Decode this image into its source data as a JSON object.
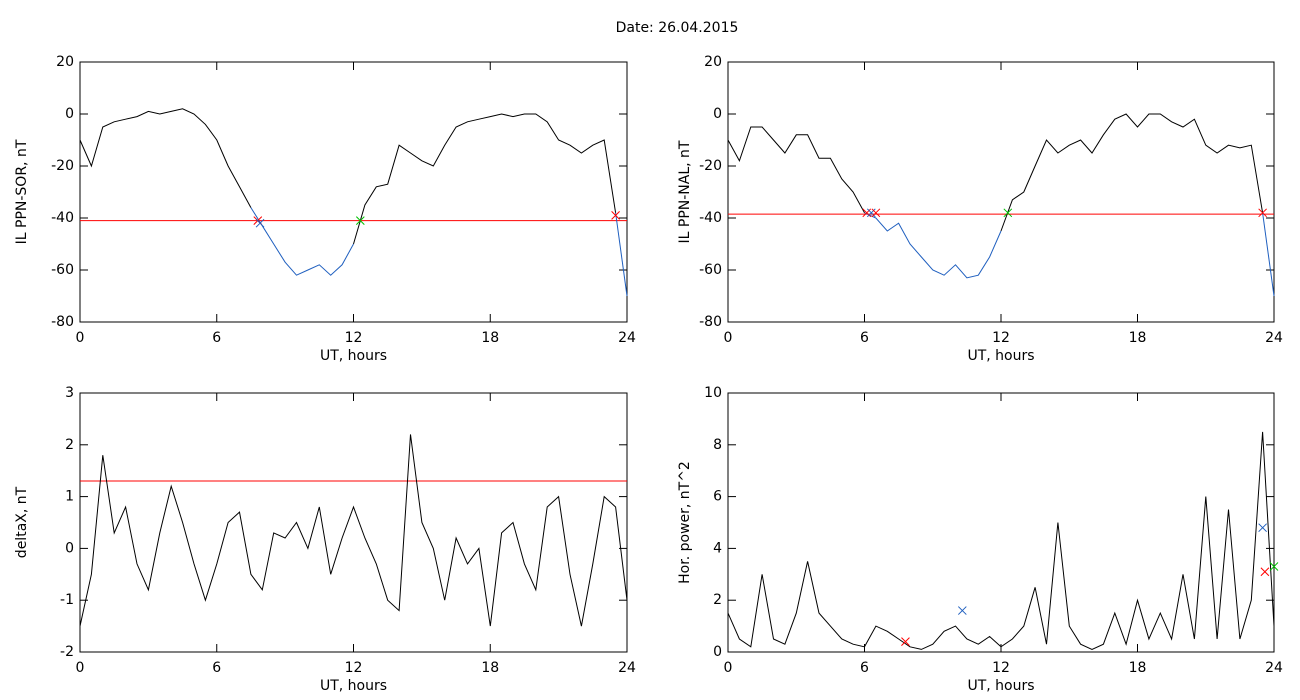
{
  "title": "Date:  26.04.2015",
  "chart_data": [
    {
      "type": "line",
      "ylabel": "IL PPN-SOR, nT",
      "xlabel": "UT, hours",
      "xlim": [
        0,
        24
      ],
      "xticks": [
        0,
        6,
        12,
        18,
        24
      ],
      "ylim": [
        -80,
        20
      ],
      "yticks": [
        -80,
        -60,
        -40,
        -20,
        0,
        20
      ],
      "x": [
        0,
        0.5,
        1,
        1.5,
        2,
        2.5,
        3,
        3.5,
        4,
        4.5,
        5,
        5.5,
        6,
        6.5,
        7,
        7.5,
        8,
        8.5,
        9,
        9.5,
        10,
        10.5,
        11,
        11.5,
        12,
        12.5,
        13,
        13.5,
        14,
        14.5,
        15,
        15.5,
        16,
        16.5,
        17,
        17.5,
        18,
        18.5,
        19,
        19.5,
        20,
        20.5,
        21,
        21.5,
        22,
        22.5,
        23,
        23.5,
        24
      ],
      "series": [
        {
          "color": "#000000",
          "below_color": "#1f5fbf",
          "values": [
            -10,
            -20,
            -5,
            -3,
            -2,
            -1,
            1,
            0,
            1,
            2,
            0,
            -4,
            -10,
            -20,
            -28,
            -36,
            -43,
            -50,
            -57,
            -62,
            -60,
            -58,
            -62,
            -58,
            -50,
            -35,
            -28,
            -27,
            -12,
            -15,
            -18,
            -20,
            -12,
            -5,
            -3,
            -2,
            -1,
            0,
            -1,
            0,
            0,
            -3,
            -10,
            -12,
            -15,
            -12,
            -10,
            -38,
            -70
          ]
        }
      ],
      "threshold": -41,
      "threshold_color": "#ff0000",
      "markers": [
        {
          "x": 7.8,
          "y": -41,
          "color": "#ff0000"
        },
        {
          "x": 7.9,
          "y": -42,
          "color": "#1f5fbf"
        },
        {
          "x": 12.3,
          "y": -41,
          "color": "#00c000"
        },
        {
          "x": 23.5,
          "y": -39,
          "color": "#ff0000"
        }
      ]
    },
    {
      "type": "line",
      "ylabel": "IL PPN-NAL, nT",
      "xlabel": "UT, hours",
      "xlim": [
        0,
        24
      ],
      "xticks": [
        0,
        6,
        12,
        18,
        24
      ],
      "ylim": [
        -80,
        20
      ],
      "yticks": [
        -80,
        -60,
        -40,
        -20,
        0,
        20
      ],
      "x": [
        0,
        0.5,
        1,
        1.5,
        2,
        2.5,
        3,
        3.5,
        4,
        4.5,
        5,
        5.5,
        6,
        6.5,
        7,
        7.5,
        8,
        8.5,
        9,
        9.5,
        10,
        10.5,
        11,
        11.5,
        12,
        12.5,
        13,
        13.5,
        14,
        14.5,
        15,
        15.5,
        16,
        16.5,
        17,
        17.5,
        18,
        18.5,
        19,
        19.5,
        20,
        20.5,
        21,
        21.5,
        22,
        22.5,
        23,
        23.5,
        24
      ],
      "series": [
        {
          "color": "#000000",
          "below_color": "#1f5fbf",
          "values": [
            -10,
            -18,
            -5,
            -5,
            -10,
            -15,
            -8,
            -8,
            -17,
            -17,
            -25,
            -30,
            -38,
            -40,
            -45,
            -42,
            -50,
            -55,
            -60,
            -62,
            -58,
            -63,
            -62,
            -55,
            -45,
            -33,
            -30,
            -20,
            -10,
            -15,
            -12,
            -10,
            -15,
            -8,
            -2,
            0,
            -5,
            0,
            0,
            -3,
            -5,
            -2,
            -12,
            -15,
            -12,
            -13,
            -12,
            -38,
            -70
          ]
        }
      ],
      "threshold": -38.5,
      "threshold_color": "#ff0000",
      "markers": [
        {
          "x": 6.1,
          "y": -38,
          "color": "#ff0000"
        },
        {
          "x": 6.3,
          "y": -38,
          "color": "#1f5fbf"
        },
        {
          "x": 6.5,
          "y": -38,
          "color": "#ff0000"
        },
        {
          "x": 12.3,
          "y": -38,
          "color": "#00c000"
        },
        {
          "x": 23.5,
          "y": -38,
          "color": "#ff0000"
        }
      ]
    },
    {
      "type": "line",
      "ylabel": "deltaX, nT",
      "xlabel": "UT, hours",
      "xlim": [
        0,
        24
      ],
      "xticks": [
        0,
        6,
        12,
        18,
        24
      ],
      "ylim": [
        -2,
        3
      ],
      "yticks": [
        -2,
        -1,
        0,
        1,
        2,
        3
      ],
      "x": [
        0,
        0.5,
        1,
        1.5,
        2,
        2.5,
        3,
        3.5,
        4,
        4.5,
        5,
        5.5,
        6,
        6.5,
        7,
        7.5,
        8,
        8.5,
        9,
        9.5,
        10,
        10.5,
        11,
        11.5,
        12,
        12.5,
        13,
        13.5,
        14,
        14.5,
        15,
        15.5,
        16,
        16.5,
        17,
        17.5,
        18,
        18.5,
        19,
        19.5,
        20,
        20.5,
        21,
        21.5,
        22,
        22.5,
        23,
        23.5,
        24
      ],
      "series": [
        {
          "color": "#000000",
          "values": [
            -1.5,
            -0.5,
            1.8,
            0.3,
            0.8,
            -0.3,
            -0.8,
            0.3,
            1.2,
            0.5,
            -0.3,
            -1.0,
            -0.3,
            0.5,
            0.7,
            -0.5,
            -0.8,
            0.3,
            0.2,
            0.5,
            0.0,
            0.8,
            -0.5,
            0.2,
            0.8,
            0.2,
            -0.3,
            -1.0,
            -1.2,
            2.2,
            0.5,
            0.0,
            -1.0,
            0.2,
            -0.3,
            0.0,
            -1.5,
            0.3,
            0.5,
            -0.3,
            -0.8,
            0.8,
            1.0,
            -0.5,
            -1.5,
            -0.3,
            1.0,
            0.8,
            -1.0
          ]
        }
      ],
      "threshold": 1.3,
      "threshold_color": "#ff0000"
    },
    {
      "type": "line",
      "ylabel": "Hor. power, nT^2",
      "xlabel": "UT, hours",
      "xlim": [
        0,
        24
      ],
      "xticks": [
        0,
        6,
        12,
        18,
        24
      ],
      "ylim": [
        0,
        10
      ],
      "yticks": [
        0,
        2,
        4,
        6,
        8,
        10
      ],
      "x": [
        0,
        0.5,
        1,
        1.5,
        2,
        2.5,
        3,
        3.5,
        4,
        4.5,
        5,
        5.5,
        6,
        6.5,
        7,
        7.5,
        8,
        8.5,
        9,
        9.5,
        10,
        10.5,
        11,
        11.5,
        12,
        12.5,
        13,
        13.5,
        14,
        14.5,
        15,
        15.5,
        16,
        16.5,
        17,
        17.5,
        18,
        18.5,
        19,
        19.5,
        20,
        20.5,
        21,
        21.5,
        22,
        22.5,
        23,
        23.5,
        24
      ],
      "series": [
        {
          "color": "#000000",
          "values": [
            1.5,
            0.5,
            0.2,
            3.0,
            0.5,
            0.3,
            1.5,
            3.5,
            1.5,
            1.0,
            0.5,
            0.3,
            0.2,
            1.0,
            0.8,
            0.5,
            0.2,
            0.1,
            0.3,
            0.8,
            1.0,
            0.5,
            0.3,
            0.6,
            0.2,
            0.5,
            1.0,
            2.5,
            0.3,
            5.0,
            1.0,
            0.3,
            0.1,
            0.3,
            1.5,
            0.3,
            2.0,
            0.5,
            1.5,
            0.5,
            3.0,
            0.5,
            6.0,
            0.5,
            5.5,
            0.5,
            2.0,
            8.5,
            1.0
          ]
        }
      ],
      "markers": [
        {
          "x": 7.8,
          "y": 0.4,
          "color": "#ff0000"
        },
        {
          "x": 10.3,
          "y": 1.6,
          "color": "#1f5fbf"
        },
        {
          "x": 23.5,
          "y": 4.8,
          "color": "#1f5fbf"
        },
        {
          "x": 23.6,
          "y": 3.1,
          "color": "#ff0000"
        },
        {
          "x": 24,
          "y": 3.3,
          "color": "#00c000"
        }
      ]
    }
  ]
}
